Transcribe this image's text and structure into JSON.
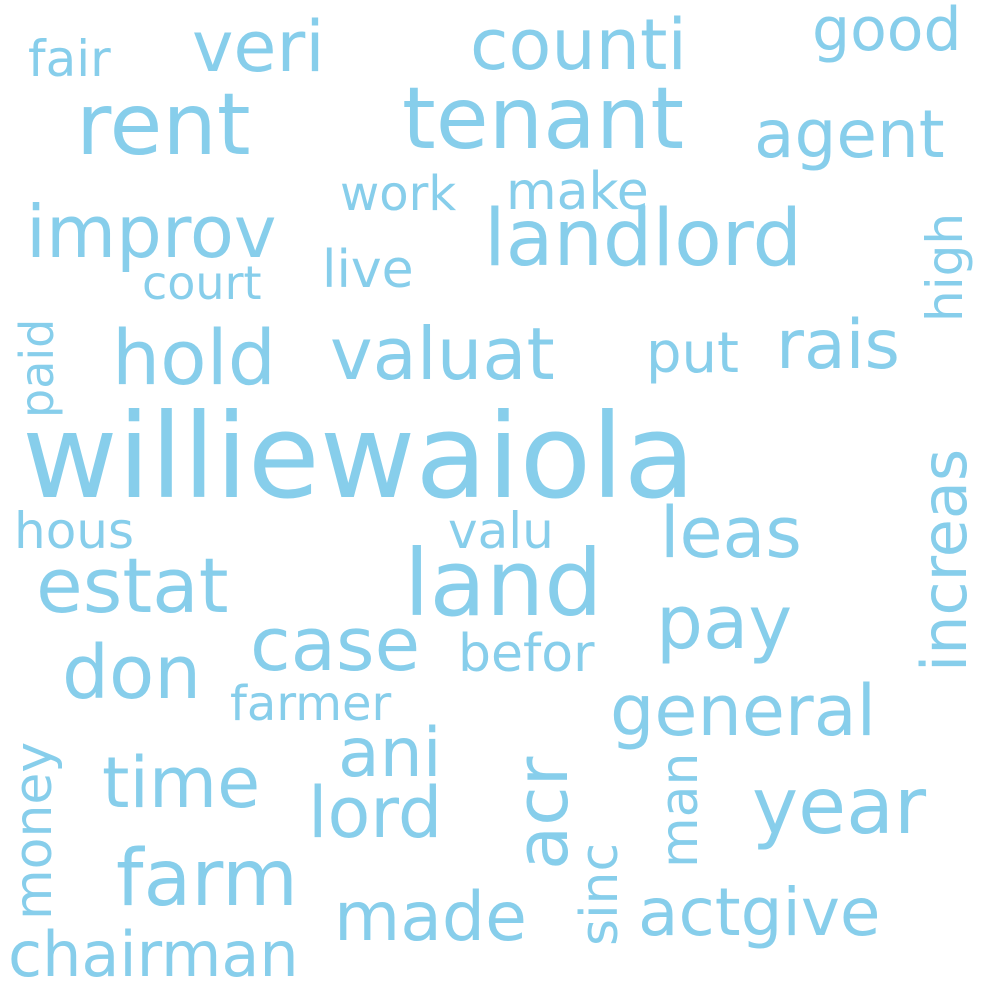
{
  "word_color": "#87CEEB",
  "background_color": "#FFFFFF",
  "words": [
    {
      "text": "williewaiola",
      "vertical": false
    },
    {
      "text": "rent",
      "vertical": false
    },
    {
      "text": "tenant",
      "vertical": false
    },
    {
      "text": "landlord",
      "vertical": false
    },
    {
      "text": "land",
      "vertical": false
    },
    {
      "text": "valuat",
      "vertical": false
    },
    {
      "text": "hold",
      "vertical": false
    },
    {
      "text": "improv",
      "vertical": false
    },
    {
      "text": "counti",
      "vertical": false
    },
    {
      "text": "veri",
      "vertical": false
    },
    {
      "text": "estat",
      "vertical": false
    },
    {
      "text": "farm",
      "vertical": false
    },
    {
      "text": "year",
      "vertical": false
    },
    {
      "text": "case",
      "vertical": false
    },
    {
      "text": "pay",
      "vertical": false
    },
    {
      "text": "general",
      "vertical": false
    },
    {
      "text": "agent",
      "vertical": false
    },
    {
      "text": "rais",
      "vertical": false
    },
    {
      "text": "leas",
      "vertical": false
    },
    {
      "text": "don",
      "vertical": false
    },
    {
      "text": "time",
      "vertical": false
    },
    {
      "text": "lord",
      "vertical": false
    },
    {
      "text": "ani",
      "vertical": false
    },
    {
      "text": "made",
      "vertical": false
    },
    {
      "text": "actgive",
      "vertical": false
    },
    {
      "text": "chairman",
      "vertical": false
    },
    {
      "text": "good",
      "vertical": false
    },
    {
      "text": "befor",
      "vertical": false
    },
    {
      "text": "put",
      "vertical": false
    },
    {
      "text": "live",
      "vertical": false
    },
    {
      "text": "make",
      "vertical": false
    },
    {
      "text": "work",
      "vertical": false
    },
    {
      "text": "court",
      "vertical": false
    },
    {
      "text": "fair",
      "vertical": false
    },
    {
      "text": "hous",
      "vertical": false
    },
    {
      "text": "valu",
      "vertical": false
    },
    {
      "text": "farmer",
      "vertical": false
    },
    {
      "text": "acr",
      "vertical": true
    },
    {
      "text": "increas",
      "vertical": true
    },
    {
      "text": "high",
      "vertical": true
    },
    {
      "text": "money",
      "vertical": true
    },
    {
      "text": "man",
      "vertical": true
    },
    {
      "text": "sinc",
      "vertical": true
    },
    {
      "text": "paid",
      "vertical": true
    }
  ]
}
